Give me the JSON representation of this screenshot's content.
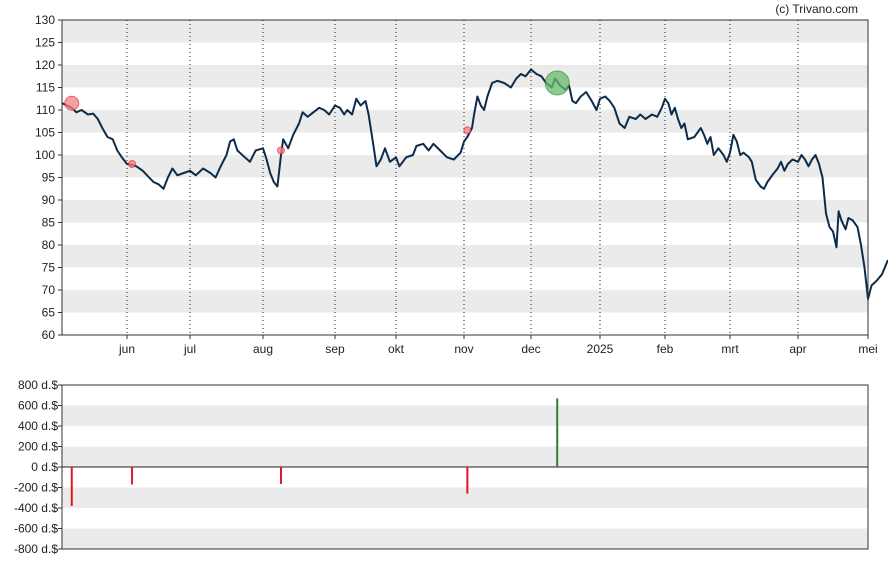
{
  "credit": "(c) Trivano.com",
  "colors": {
    "price_line": "#0d2c4a",
    "band": "#ebebeb",
    "sell": "#e8141e",
    "buy": "#2e7d32",
    "sell_marker": "#f08080",
    "buy_marker": "#66bb6a"
  },
  "chart_data": [
    {
      "type": "line",
      "title": "",
      "xlabel": "",
      "ylabel": "",
      "ylim": [
        60,
        130
      ],
      "yticks": [
        60,
        65,
        70,
        75,
        80,
        85,
        90,
        95,
        100,
        105,
        110,
        115,
        120,
        125,
        130
      ],
      "grid": "horizontal bands, dotted vertical month lines",
      "month_labels": [
        {
          "label": "jun",
          "month": 1
        },
        {
          "label": "jul",
          "month": 2
        },
        {
          "label": "aug",
          "month": 3
        },
        {
          "label": "sep",
          "month": 4
        },
        {
          "label": "okt",
          "month": 5
        },
        {
          "label": "nov",
          "month": 6
        },
        {
          "label": "dec",
          "month": 7
        },
        {
          "label": "2025",
          "month": 8
        },
        {
          "label": "feb",
          "month": 9
        },
        {
          "label": "mrt",
          "month": 10
        },
        {
          "label": "apr",
          "month": 11
        },
        {
          "label": "mei",
          "month": 12
        }
      ],
      "series": [
        {
          "points": [
            [
              0.0,
              111.5
            ],
            [
              0.08,
              111.0
            ],
            [
              0.15,
              110.5
            ],
            [
              0.22,
              109.5
            ],
            [
              0.3,
              110.0
            ],
            [
              0.4,
              109.0
            ],
            [
              0.48,
              109.2
            ],
            [
              0.55,
              108.0
            ],
            [
              0.62,
              106.0
            ],
            [
              0.7,
              104.0
            ],
            [
              0.78,
              103.5
            ],
            [
              0.85,
              101.0
            ],
            [
              0.92,
              99.5
            ],
            [
              1.0,
              98.0
            ],
            [
              1.08,
              97.8
            ],
            [
              1.15,
              97.5
            ],
            [
              1.25,
              96.5
            ],
            [
              1.35,
              95.0
            ],
            [
              1.42,
              94.0
            ],
            [
              1.5,
              93.5
            ],
            [
              1.58,
              92.5
            ],
            [
              1.65,
              95.0
            ],
            [
              1.72,
              97.0
            ],
            [
              1.8,
              95.5
            ],
            [
              1.9,
              96.0
            ],
            [
              2.0,
              96.5
            ],
            [
              2.08,
              95.5
            ],
            [
              2.18,
              97.0
            ],
            [
              2.28,
              96.0
            ],
            [
              2.35,
              95.0
            ],
            [
              2.42,
              97.5
            ],
            [
              2.5,
              100.0
            ],
            [
              2.55,
              103.0
            ],
            [
              2.6,
              103.5
            ],
            [
              2.65,
              101.0
            ],
            [
              2.75,
              99.5
            ],
            [
              2.82,
              98.5
            ],
            [
              2.9,
              101.0
            ],
            [
              3.0,
              101.5
            ],
            [
              3.05,
              99.0
            ],
            [
              3.1,
              96.0
            ],
            [
              3.15,
              94.0
            ],
            [
              3.2,
              93.0
            ],
            [
              3.25,
              100.0
            ],
            [
              3.28,
              103.5
            ],
            [
              3.35,
              101.5
            ],
            [
              3.42,
              104.5
            ],
            [
              3.5,
              107.0
            ],
            [
              3.55,
              109.5
            ],
            [
              3.62,
              108.5
            ],
            [
              3.7,
              109.5
            ],
            [
              3.78,
              110.5
            ],
            [
              3.85,
              110.0
            ],
            [
              3.92,
              109.0
            ],
            [
              4.0,
              111.0
            ],
            [
              4.08,
              110.5
            ],
            [
              4.15,
              109.0
            ],
            [
              4.2,
              110.0
            ],
            [
              4.28,
              109.0
            ],
            [
              4.35,
              112.5
            ],
            [
              4.42,
              111.0
            ],
            [
              4.5,
              112.0
            ],
            [
              4.55,
              109.0
            ],
            [
              4.62,
              103.0
            ],
            [
              4.68,
              97.5
            ],
            [
              4.75,
              99.0
            ],
            [
              4.82,
              101.5
            ],
            [
              4.9,
              98.5
            ],
            [
              5.0,
              99.5
            ],
            [
              5.05,
              97.5
            ],
            [
              5.15,
              99.5
            ],
            [
              5.25,
              100.0
            ],
            [
              5.3,
              102.0
            ],
            [
              5.4,
              102.5
            ],
            [
              5.48,
              101.0
            ],
            [
              5.55,
              102.5
            ],
            [
              5.65,
              101.0
            ],
            [
              5.75,
              99.5
            ],
            [
              5.85,
              99.0
            ],
            [
              5.95,
              100.5
            ],
            [
              6.0,
              103.0
            ],
            [
              6.05,
              104.0
            ],
            [
              6.12,
              106.0
            ],
            [
              6.15,
              109.0
            ],
            [
              6.2,
              113.0
            ],
            [
              6.25,
              111.0
            ],
            [
              6.3,
              110.0
            ],
            [
              6.35,
              113.0
            ],
            [
              6.42,
              116.0
            ],
            [
              6.5,
              116.5
            ],
            [
              6.6,
              116.0
            ],
            [
              6.7,
              115.0
            ],
            [
              6.78,
              117.0
            ],
            [
              6.85,
              118.0
            ],
            [
              6.92,
              117.5
            ],
            [
              7.0,
              119.0
            ],
            [
              7.08,
              118.0
            ],
            [
              7.15,
              117.5
            ],
            [
              7.22,
              116.0
            ],
            [
              7.3,
              115.0
            ],
            [
              7.35,
              117.0
            ],
            [
              7.42,
              115.5
            ],
            [
              7.5,
              114.5
            ],
            [
              7.55,
              115.5
            ],
            [
              7.6,
              112.0
            ],
            [
              7.65,
              111.5
            ],
            [
              7.72,
              113.0
            ],
            [
              7.8,
              114.0
            ],
            [
              7.88,
              112.0
            ],
            [
              7.95,
              110.0
            ],
            [
              8.0,
              112.5
            ],
            [
              8.08,
              113.0
            ],
            [
              8.15,
              112.0
            ],
            [
              8.22,
              110.5
            ],
            [
              8.3,
              107.0
            ],
            [
              8.38,
              106.0
            ],
            [
              8.45,
              108.5
            ],
            [
              8.55,
              108.0
            ],
            [
              8.62,
              109.0
            ],
            [
              8.7,
              108.0
            ],
            [
              8.8,
              109.0
            ],
            [
              8.88,
              108.5
            ],
            [
              8.95,
              110.5
            ],
            [
              9.0,
              112.5
            ],
            [
              9.05,
              111.5
            ],
            [
              9.1,
              109.0
            ],
            [
              9.15,
              110.5
            ],
            [
              9.2,
              108.0
            ],
            [
              9.25,
              106.0
            ],
            [
              9.3,
              107.0
            ],
            [
              9.35,
              103.5
            ],
            [
              9.45,
              104.0
            ],
            [
              9.55,
              106.0
            ],
            [
              9.6,
              104.5
            ],
            [
              9.65,
              102.5
            ],
            [
              9.7,
              104.0
            ],
            [
              9.75,
              100.0
            ],
            [
              9.82,
              101.5
            ],
            [
              9.9,
              100.0
            ],
            [
              9.95,
              98.5
            ],
            [
              10.0,
              100.5
            ],
            [
              10.05,
              104.5
            ],
            [
              10.1,
              103.0
            ],
            [
              10.15,
              100.0
            ],
            [
              10.2,
              100.5
            ],
            [
              10.28,
              99.5
            ],
            [
              10.32,
              98.5
            ],
            [
              10.38,
              94.5
            ],
            [
              10.45,
              93.0
            ],
            [
              10.5,
              92.5
            ],
            [
              10.55,
              94.0
            ],
            [
              10.62,
              95.5
            ],
            [
              10.7,
              97.0
            ],
            [
              10.75,
              98.5
            ],
            [
              10.8,
              96.5
            ],
            [
              10.85,
              98.0
            ],
            [
              10.92,
              99.0
            ],
            [
              11.0,
              98.5
            ],
            [
              11.05,
              100.0
            ],
            [
              11.1,
              99.0
            ],
            [
              11.15,
              97.5
            ],
            [
              11.2,
              99.0
            ],
            [
              11.25,
              100.0
            ],
            [
              11.3,
              98.0
            ],
            [
              11.35,
              95.0
            ],
            [
              11.4,
              87.0
            ],
            [
              11.45,
              84.0
            ],
            [
              11.5,
              83.0
            ],
            [
              11.55,
              79.5
            ],
            [
              11.58,
              87.5
            ],
            [
              11.62,
              85.5
            ],
            [
              11.68,
              83.5
            ],
            [
              11.72,
              86.0
            ],
            [
              11.78,
              85.5
            ],
            [
              11.85,
              84.0
            ],
            [
              11.9,
              80.0
            ],
            [
              11.95,
              75.0
            ],
            [
              12.0,
              68.0
            ],
            [
              12.05,
              71.0
            ],
            [
              12.12,
              72.0
            ],
            [
              12.2,
              73.5
            ],
            [
              12.28,
              76.5
            ],
            [
              12.38,
              77.0
            ],
            [
              12.45,
              79.0
            ]
          ]
        }
      ],
      "trade_markers": [
        {
          "kind": "sell",
          "month": 0.15,
          "value": 111.5,
          "size": "large"
        },
        {
          "kind": "sell",
          "month": 1.08,
          "value": 98.0,
          "size": "small"
        },
        {
          "kind": "sell",
          "month": 3.25,
          "value": 101.0,
          "size": "small"
        },
        {
          "kind": "sell",
          "month": 6.05,
          "value": 105.5,
          "size": "small"
        },
        {
          "kind": "buy",
          "month": 7.38,
          "value": 116.0,
          "size": "large"
        }
      ]
    },
    {
      "type": "bar",
      "title": "",
      "xlabel": "",
      "ylabel": "",
      "ylim": [
        -800,
        800
      ],
      "yticks": [
        "800 d.$",
        "600 d.$",
        "400 d.$",
        "200 d.$",
        "0 d.$",
        "-200 d.$",
        "-400 d.$",
        "-600 d.$",
        "-800 d.$"
      ],
      "ytick_values": [
        800,
        600,
        400,
        200,
        0,
        -200,
        -400,
        -600,
        -800
      ],
      "bars": [
        {
          "month": 0.15,
          "value": -380
        },
        {
          "month": 1.08,
          "value": -170
        },
        {
          "month": 3.25,
          "value": -165
        },
        {
          "month": 6.05,
          "value": -260
        },
        {
          "month": 7.38,
          "value": 670
        }
      ]
    }
  ]
}
